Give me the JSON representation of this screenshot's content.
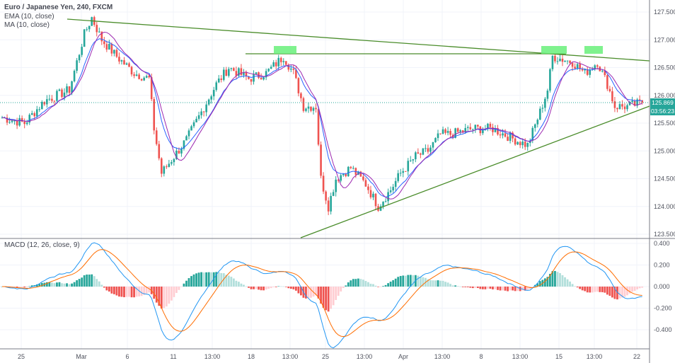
{
  "legend": {
    "title": "Euro / Japanese Yen, 240, FXCM",
    "ema": "EMA (10, close)",
    "ma": "MA (10, close)",
    "macd": "MACD (12, 26, close, 9)"
  },
  "price_tag": {
    "price": "125.869",
    "countdown": "03:56:23"
  },
  "colors": {
    "up": "#26a69a",
    "down": "#ef5350",
    "up_light": "#b2dfdb",
    "down_light": "#ffcdd2",
    "ema": "#2962ff",
    "ma": "#9c27b0",
    "macd": "#2196f3",
    "signal": "#ff6d00",
    "trend": "#4a8c2a",
    "zone": "#69f07a"
  },
  "chart_data": [
    {
      "type": "candlestick",
      "title": "Euro / Japanese Yen, 240, FXCM",
      "ylim": [
        123.4,
        127.7
      ],
      "yticks": [
        "127.500",
        "127.000",
        "126.500",
        "126.000",
        "125.500",
        "125.000",
        "124.500",
        "124.000",
        "123.500"
      ],
      "xticks": [
        "25",
        "Mar",
        "6",
        "11",
        "13:00",
        "18",
        "13:00",
        "25",
        "13:00",
        "Apr",
        "13:00",
        "8",
        "13:00",
        "15",
        "13:00",
        "22"
      ],
      "close_keyframes": [
        [
          0,
          125.6
        ],
        [
          9,
          125.5
        ],
        [
          17,
          125.9
        ],
        [
          27,
          126.1
        ],
        [
          33,
          127.1
        ],
        [
          36,
          127.4
        ],
        [
          40,
          127.0
        ],
        [
          46,
          126.7
        ],
        [
          53,
          126.4
        ],
        [
          59,
          126.3
        ],
        [
          61,
          125.4
        ],
        [
          64,
          124.6
        ],
        [
          69,
          124.9
        ],
        [
          74,
          125.2
        ],
        [
          80,
          125.7
        ],
        [
          86,
          126.2
        ],
        [
          91,
          126.5
        ],
        [
          99,
          126.3
        ],
        [
          106,
          126.4
        ],
        [
          113,
          126.7
        ],
        [
          117,
          126.4
        ],
        [
          121,
          125.8
        ],
        [
          126,
          125.8
        ],
        [
          128,
          124.5
        ],
        [
          131,
          124.0
        ],
        [
          134,
          124.5
        ],
        [
          140,
          124.7
        ],
        [
          146,
          124.4
        ],
        [
          151,
          124.0
        ],
        [
          156,
          124.3
        ],
        [
          160,
          124.6
        ],
        [
          166,
          124.9
        ],
        [
          171,
          125.0
        ],
        [
          176,
          125.3
        ],
        [
          180,
          125.3
        ],
        [
          189,
          125.4
        ],
        [
          197,
          125.4
        ],
        [
          206,
          125.2
        ],
        [
          211,
          125.1
        ],
        [
          216,
          125.7
        ],
        [
          219,
          126.1
        ],
        [
          221,
          126.7
        ],
        [
          229,
          126.6
        ],
        [
          234,
          126.4
        ],
        [
          239,
          126.6
        ],
        [
          243,
          126.2
        ],
        [
          246,
          125.8
        ],
        [
          251,
          125.8
        ],
        [
          257,
          125.87
        ]
      ],
      "annotations": [
        "descending trendline",
        "horizontal resistance 126.75",
        "ascending trendline",
        "3 resistance touch zones"
      ]
    },
    {
      "type": "line",
      "title": "MACD (12, 26, close, 9)",
      "ylim": [
        -0.55,
        0.45
      ],
      "yticks": [
        "0.400",
        "0.200",
        "0.000",
        "-0.200",
        "-0.400"
      ],
      "series": [
        "MACD",
        "Signal",
        "Histogram"
      ]
    }
  ]
}
